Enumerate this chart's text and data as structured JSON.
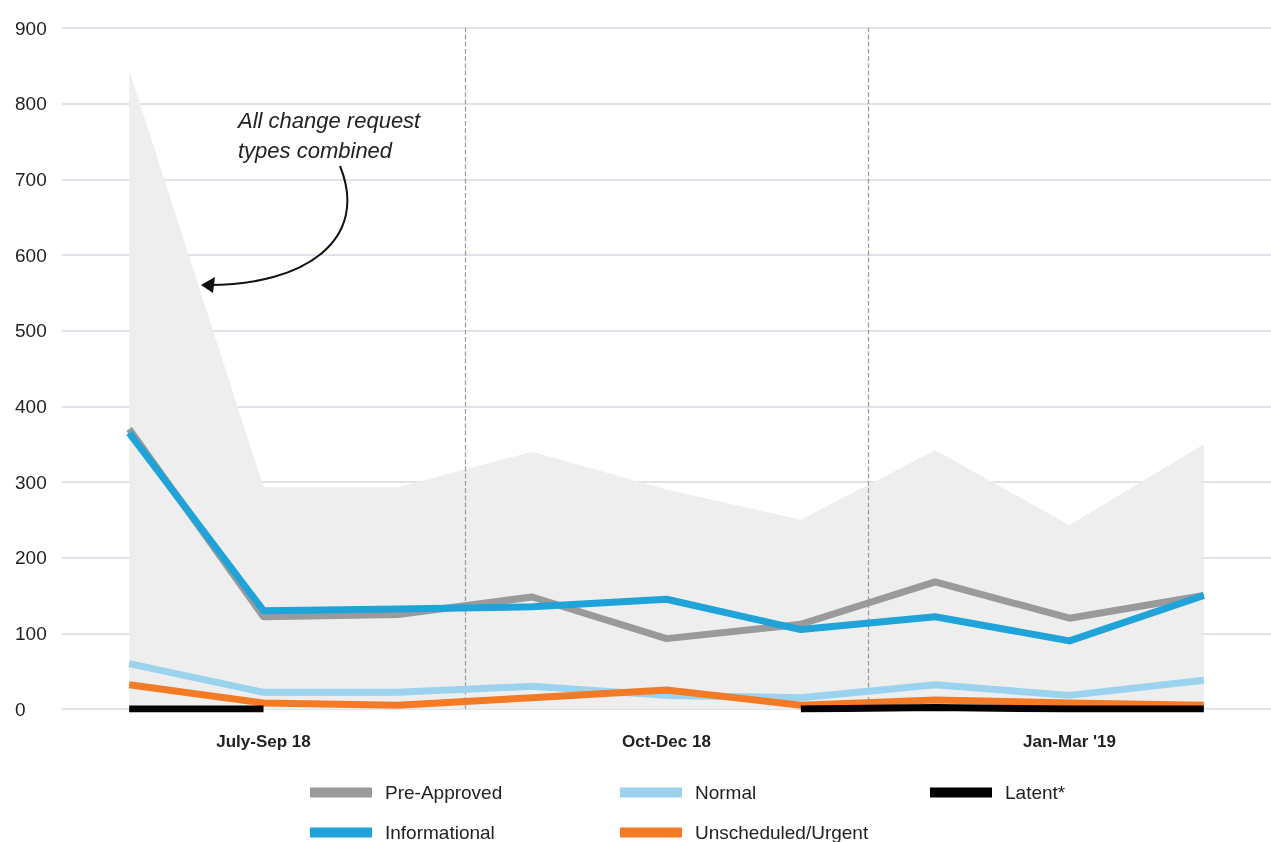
{
  "chart_data": {
    "type": "line",
    "categories": [
      null,
      "July-Sep 18",
      null,
      null,
      "Oct-Dec 18",
      null,
      null,
      "Jan-Mar '19",
      null
    ],
    "series": [
      {
        "type": "area",
        "color": "#eeeeee",
        "values": [
          844,
          293,
          293,
          340,
          290,
          250,
          342,
          243,
          350
        ]
      },
      {
        "name": "Pre-Approved",
        "color": "#999a9c",
        "values": [
          370,
          122,
          125,
          148,
          93,
          112,
          168,
          120,
          150
        ]
      },
      {
        "name": "Informational",
        "color": "#1fa3d9",
        "values": [
          365,
          130,
          132,
          135,
          145,
          105,
          122,
          90,
          150
        ]
      },
      {
        "name": "Normal",
        "color": "#9bd3ef",
        "values": [
          60,
          22,
          22,
          30,
          18,
          15,
          32,
          18,
          38
        ]
      },
      {
        "name": "Unscheduled/Urgent",
        "color": "#f47a25",
        "values": [
          32,
          8,
          5,
          15,
          25,
          5,
          12,
          8,
          5
        ]
      },
      {
        "name": "Latent*",
        "color": "#000000",
        "values": [
          0,
          0,
          null,
          null,
          null,
          0,
          2,
          0,
          0
        ]
      }
    ],
    "ylim": [
      0,
      900
    ],
    "yticks": [
      0,
      100,
      200,
      300,
      400,
      500,
      600,
      700,
      800,
      900
    ],
    "grid": "y",
    "legend": "bottom",
    "marker": "none",
    "line_style": "solid",
    "annotations": [
      "All change request types combined"
    ]
  }
}
